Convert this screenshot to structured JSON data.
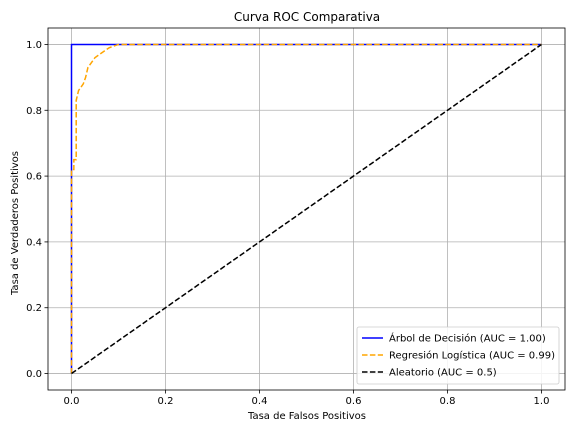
{
  "chart_data": {
    "type": "line",
    "title": "Curva ROC Comparativa",
    "xlabel": "Tasa de Falsos Positivos",
    "ylabel": "Tasa de Verdaderos Positivos",
    "xlim": [
      -0.05,
      1.05
    ],
    "ylim": [
      -0.05,
      1.05
    ],
    "grid": true,
    "legend_position": "bottom-right",
    "xticks": [
      {
        "value": 0.0,
        "label": "0.0"
      },
      {
        "value": 0.2,
        "label": "0.2"
      },
      {
        "value": 0.4,
        "label": "0.4"
      },
      {
        "value": 0.6,
        "label": "0.6"
      },
      {
        "value": 0.8,
        "label": "0.8"
      },
      {
        "value": 1.0,
        "label": "1.0"
      }
    ],
    "yticks": [
      {
        "value": 0.0,
        "label": "0.0"
      },
      {
        "value": 0.2,
        "label": "0.2"
      },
      {
        "value": 0.4,
        "label": "0.4"
      },
      {
        "value": 0.6,
        "label": "0.6"
      },
      {
        "value": 0.8,
        "label": "0.8"
      },
      {
        "value": 1.0,
        "label": "1.0"
      }
    ],
    "series": [
      {
        "name": "Árbol de Decisión (AUC = 1.00)",
        "color": "#0000ff",
        "style": "solid",
        "x": [
          0.0,
          0.0,
          0.0,
          1.0
        ],
        "y": [
          0.0,
          0.62,
          1.0,
          1.0
        ]
      },
      {
        "name": "Regresión Logística (AUC = 0.99)",
        "color": "#ffa500",
        "style": "dashed",
        "x": [
          0.0,
          0.0,
          0.005,
          0.005,
          0.01,
          0.01,
          0.015,
          0.02,
          0.025,
          0.03,
          0.035,
          0.04,
          0.045,
          0.05,
          0.06,
          0.07,
          0.08,
          0.09,
          0.1,
          1.0
        ],
        "y": [
          0.0,
          0.62,
          0.62,
          0.65,
          0.65,
          0.83,
          0.86,
          0.87,
          0.88,
          0.9,
          0.93,
          0.94,
          0.95,
          0.96,
          0.97,
          0.98,
          0.99,
          0.995,
          1.0,
          1.0
        ]
      },
      {
        "name": "Aleatorio (AUC = 0.5)",
        "color": "#000000",
        "style": "dashed",
        "x": [
          0.0,
          1.0
        ],
        "y": [
          0.0,
          1.0
        ]
      }
    ]
  }
}
